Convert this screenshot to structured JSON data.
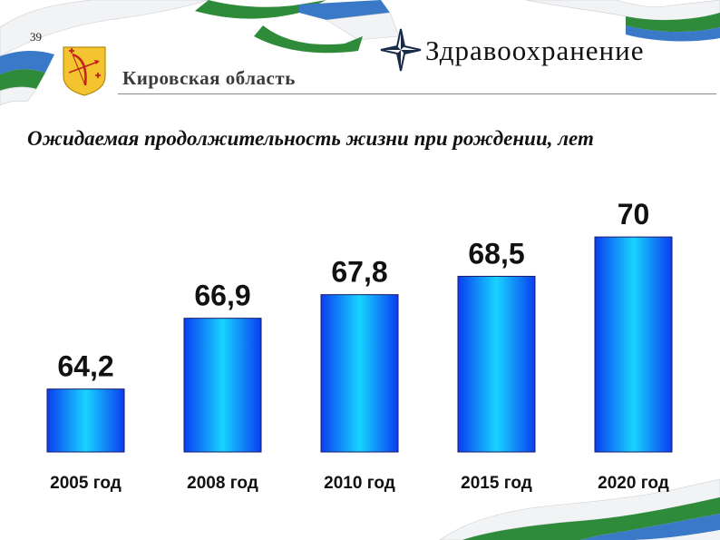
{
  "slide_number": "39",
  "header": {
    "region": "Кировская область",
    "section": "Здравоохранение"
  },
  "icons": {
    "emblem": "kirov-coat-of-arms-icon",
    "star": "four-point-star-icon"
  },
  "colors": {
    "bar_dark": "#0a3ef0",
    "bar_light": "#18d4ff",
    "ribbon_green": "#2e8b3a",
    "ribbon_blue": "#3a78c8"
  },
  "chart_data": {
    "type": "bar",
    "title": "Ожидаемая продолжительность жизни при рождении, лет",
    "categories": [
      "2005 год",
      "2008 год",
      "2010 год",
      "2015 год",
      "2020 год"
    ],
    "values": [
      64.2,
      66.9,
      67.8,
      68.5,
      70
    ],
    "value_labels": [
      "64,2",
      "66,9",
      "67,8",
      "68,5",
      "70"
    ],
    "ylim": [
      61.8,
      70.8
    ],
    "grid": false,
    "legend": "none"
  }
}
